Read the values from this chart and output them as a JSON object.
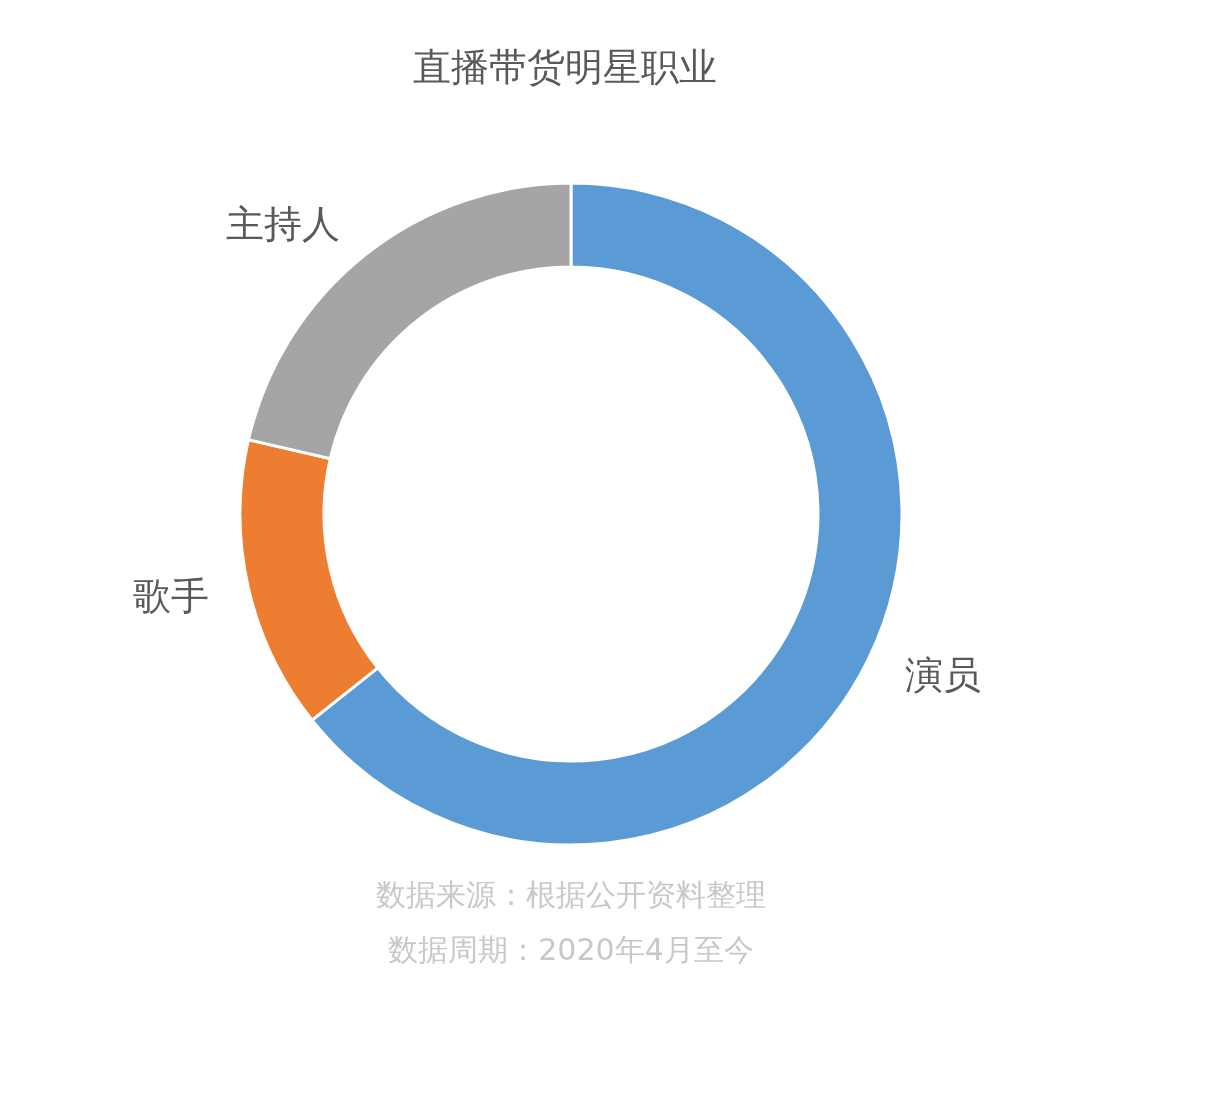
{
  "chart_data": {
    "type": "donut",
    "title": "直播带货明星职业",
    "categories": [
      "演员",
      "歌手",
      "主持人"
    ],
    "values": [
      64.3,
      14.3,
      21.4
    ],
    "colors": [
      "#5b9bd5",
      "#ed7d31",
      "#a5a5a5"
    ],
    "annotations": [
      "数据来源：根据公开资料整理",
      "数据周期：2020年4月至今"
    ]
  }
}
